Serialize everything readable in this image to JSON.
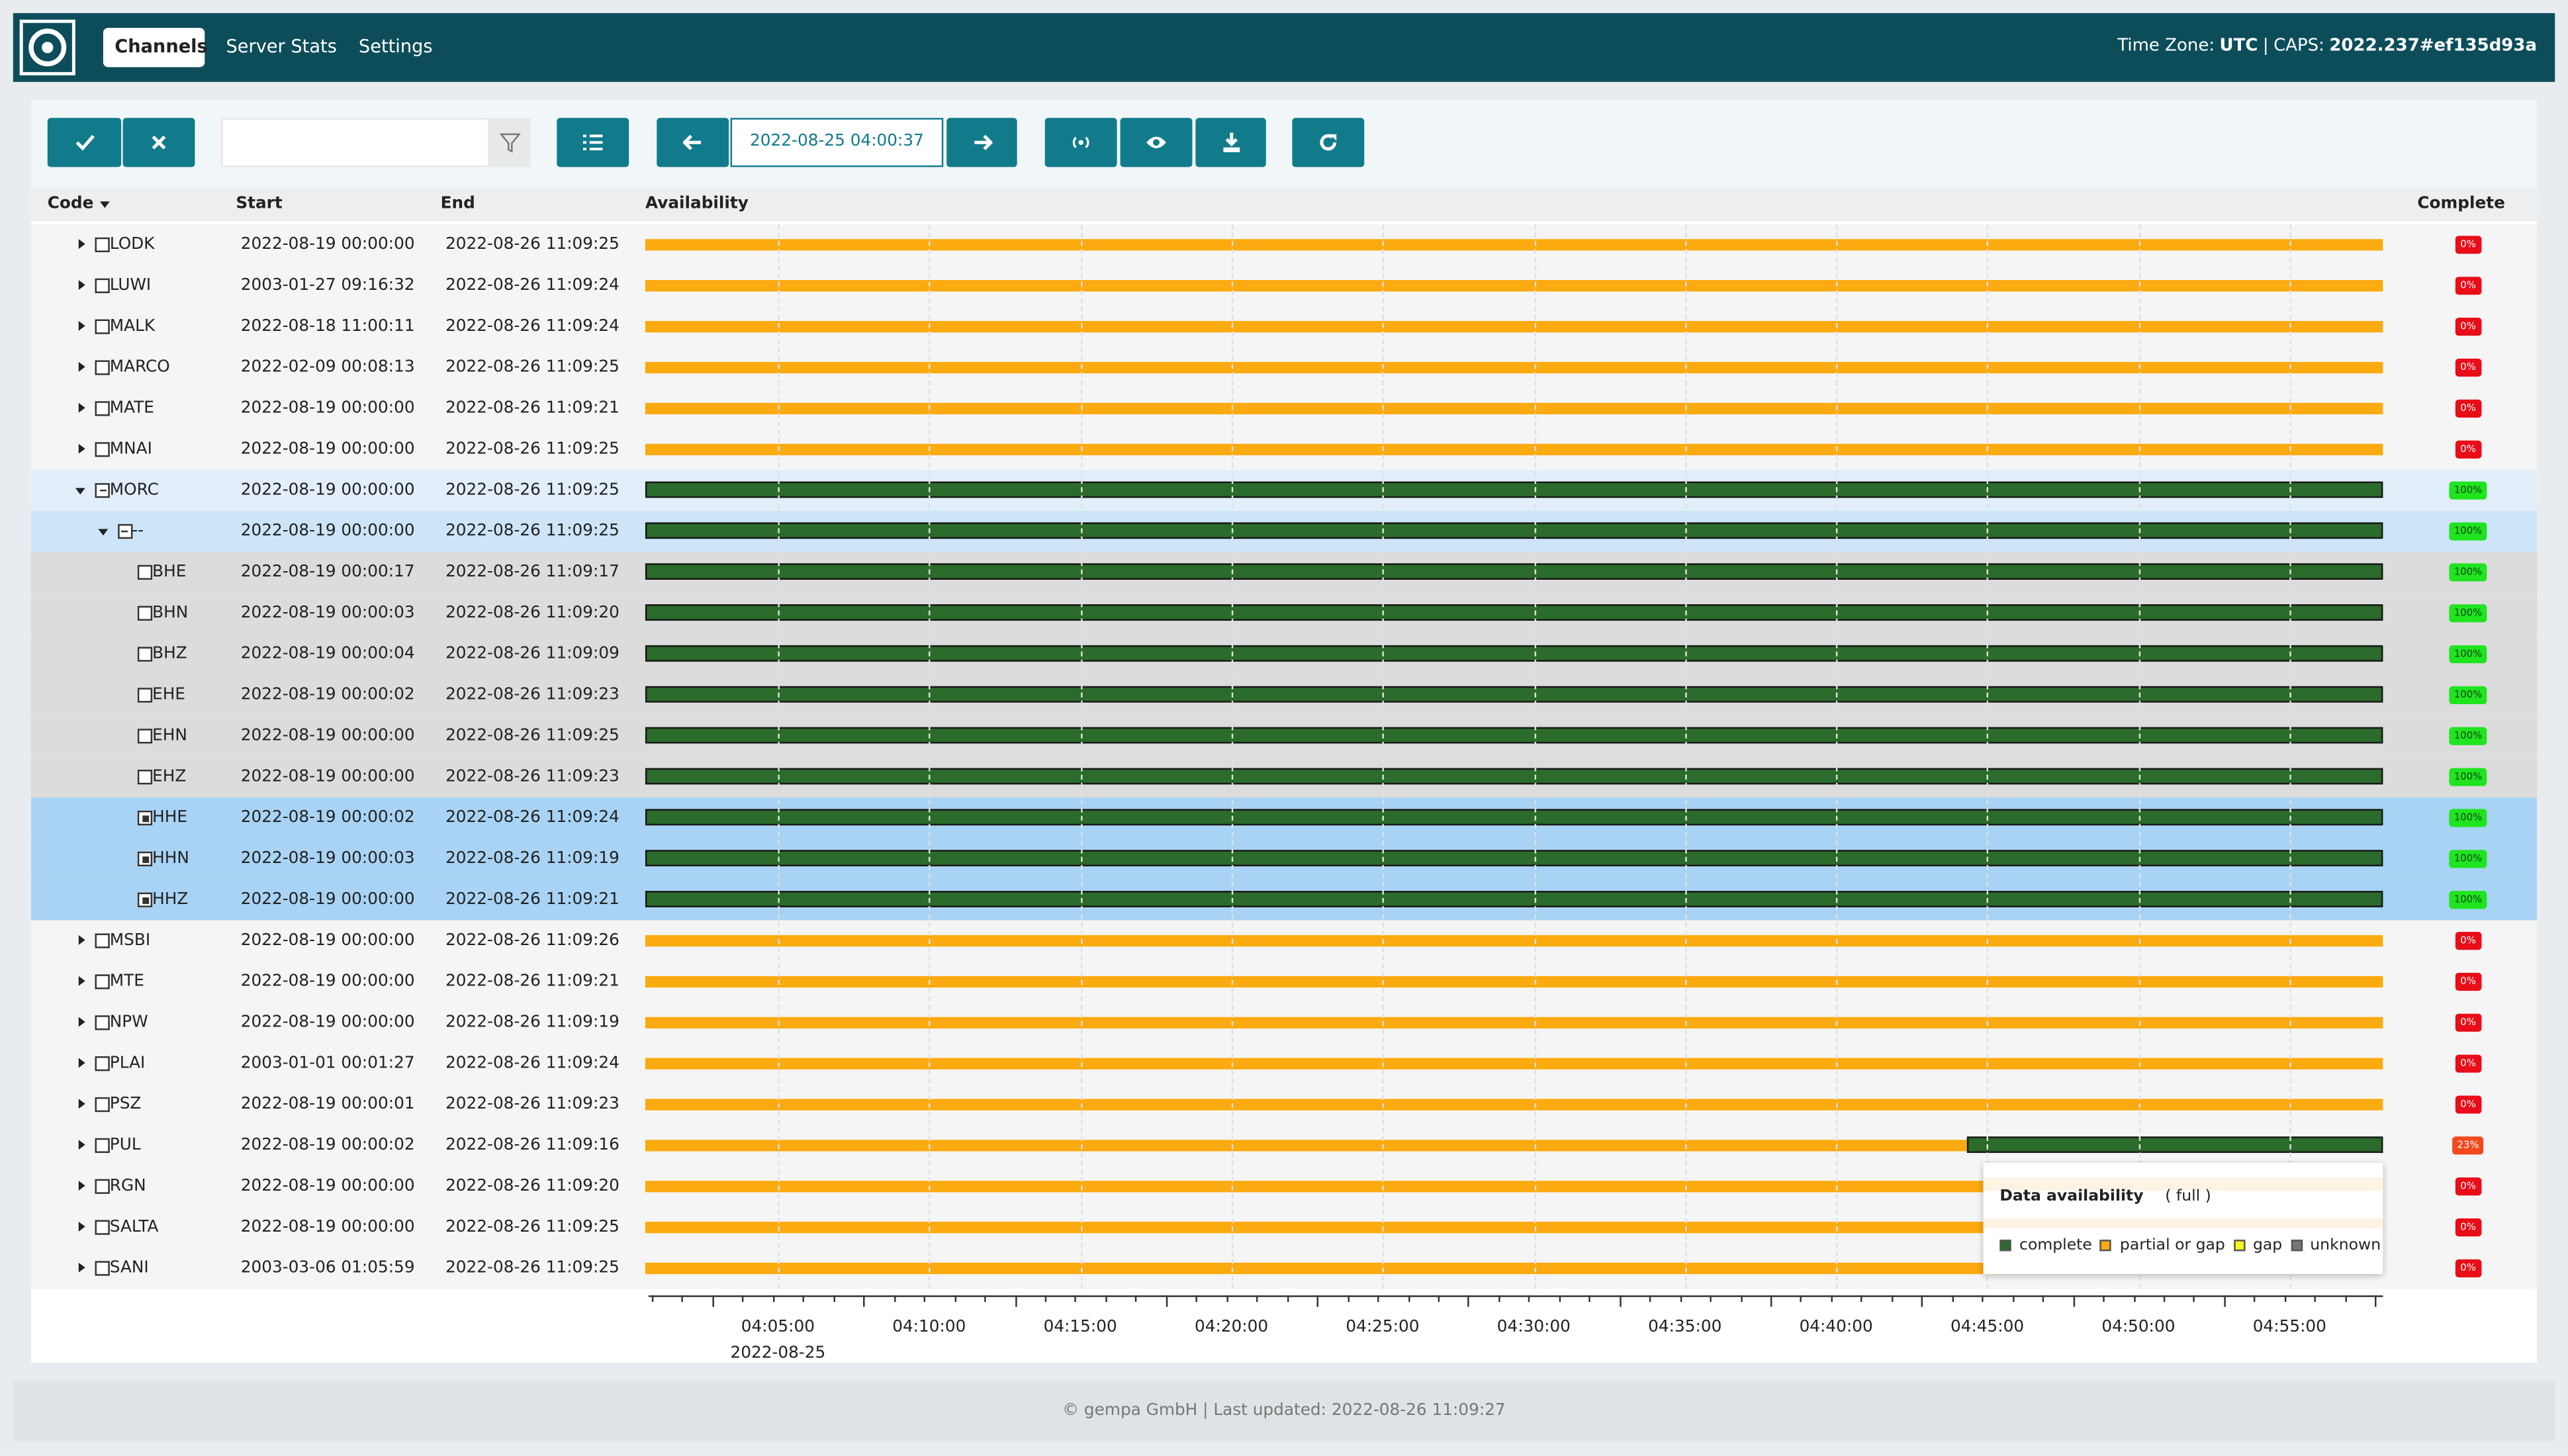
{
  "nav": {
    "tabs": [
      "Channels",
      "Server Stats",
      "Settings"
    ],
    "time_zone_label": "Time Zone:",
    "time_zone": "UTC",
    "separator": "|",
    "caps_label": "CAPS:",
    "caps_version": "2022.237#ef135d93a"
  },
  "toolbar": {
    "time": "2022-08-25 04:00:37"
  },
  "table": {
    "columns": [
      "Code",
      "Start",
      "End",
      "Availability",
      "Complete"
    ],
    "rows": [
      [
        "LODK",
        "2022-08-19 00:00:00",
        "2022-08-26 11:09:25",
        "0%"
      ],
      [
        "LUWI",
        "2003-01-27 09:16:32",
        "2022-08-26 11:09:24",
        "0%"
      ],
      [
        "MALK",
        "2022-08-18 11:00:11",
        "2022-08-26 11:09:24",
        "0%"
      ],
      [
        "MARCO",
        "2022-02-09 00:08:13",
        "2022-08-26 11:09:25",
        "0%"
      ],
      [
        "MATE",
        "2022-08-19 00:00:00",
        "2022-08-26 11:09:21",
        "0%"
      ],
      [
        "MNAI",
        "2022-08-19 00:00:00",
        "2022-08-26 11:09:25",
        "0%"
      ],
      [
        "MORC",
        "2022-08-19 00:00:00",
        "2022-08-26 11:09:25",
        "100%"
      ],
      [
        "--",
        "2022-08-19 00:00:00",
        "2022-08-26 11:09:25",
        "100%"
      ],
      [
        "BHE",
        "2022-08-19 00:00:17",
        "2022-08-26 11:09:17",
        "100%"
      ],
      [
        "BHN",
        "2022-08-19 00:00:03",
        "2022-08-26 11:09:20",
        "100%"
      ],
      [
        "BHZ",
        "2022-08-19 00:00:04",
        "2022-08-26 11:09:09",
        "100%"
      ],
      [
        "EHE",
        "2022-08-19 00:00:02",
        "2022-08-26 11:09:23",
        "100%"
      ],
      [
        "EHN",
        "2022-08-19 00:00:00",
        "2022-08-26 11:09:25",
        "100%"
      ],
      [
        "EHZ",
        "2022-08-19 00:00:00",
        "2022-08-26 11:09:23",
        "100%"
      ],
      [
        "HHE",
        "2022-08-19 00:00:02",
        "2022-08-26 11:09:24",
        "100%"
      ],
      [
        "HHN",
        "2022-08-19 00:00:03",
        "2022-08-26 11:09:19",
        "100%"
      ],
      [
        "HHZ",
        "2022-08-19 00:00:00",
        "2022-08-26 11:09:21",
        "100%"
      ],
      [
        "MSBI",
        "2022-08-19 00:00:00",
        "2022-08-26 11:09:26",
        "0%"
      ],
      [
        "MTE",
        "2022-08-19 00:00:00",
        "2022-08-26 11:09:21",
        "0%"
      ],
      [
        "NPW",
        "2022-08-19 00:00:00",
        "2022-08-26 11:09:19",
        "0%"
      ],
      [
        "PLAI",
        "2003-01-01 00:01:27",
        "2022-08-26 11:09:24",
        "0%"
      ],
      [
        "PSZ",
        "2022-08-19 00:00:01",
        "2022-08-26 11:09:23",
        "0%"
      ],
      [
        "PUL",
        "2022-08-19 00:00:02",
        "2022-08-26 11:09:16",
        "23%"
      ],
      [
        "RGN",
        "2022-08-19 00:00:00",
        "2022-08-26 11:09:20",
        "0%"
      ],
      [
        "SALTA",
        "2022-08-19 00:00:00",
        "2022-08-26 11:09:25",
        "0%"
      ],
      [
        "SANI",
        "2003-03-06 01:05:59",
        "2022-08-26 11:09:25",
        "0%"
      ]
    ]
  },
  "axis": {
    "ticks": [
      "04:05:00",
      "04:10:00",
      "04:15:00",
      "04:20:00",
      "04:25:00",
      "04:30:00",
      "04:35:00",
      "04:40:00",
      "04:45:00",
      "04:50:00",
      "04:55:00"
    ],
    "date": "2022-08-25"
  },
  "legend": {
    "title": "Data availability",
    "mode": "( full )",
    "items": [
      "complete",
      "partial or gap",
      "gap",
      "unknown"
    ]
  },
  "footer": "© gempa GmbH | Last updated: 2022-08-26 11:09:27"
}
